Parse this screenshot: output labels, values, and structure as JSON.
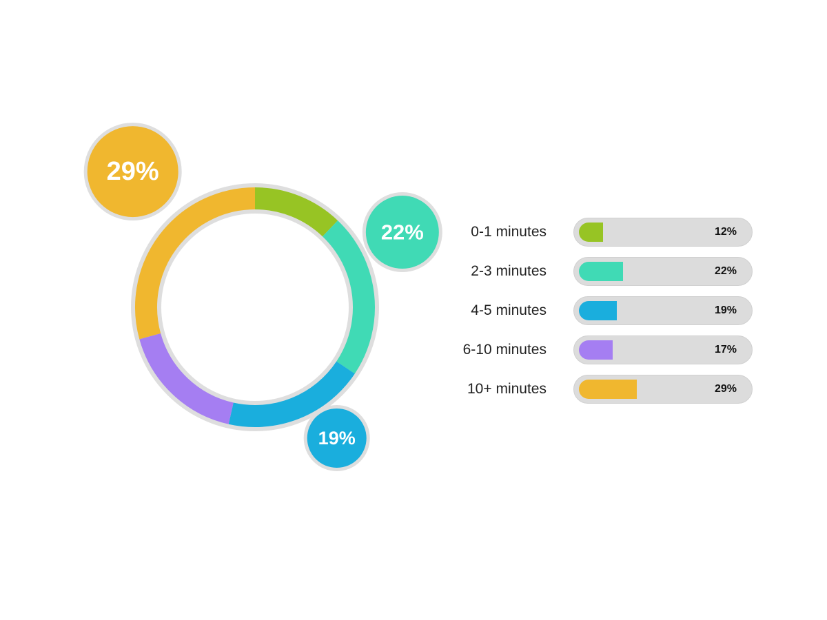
{
  "chart_data": {
    "type": "pie",
    "categories": [
      "0-1 minutes",
      "2-3 minutes",
      "4-5 minutes",
      "6-10 minutes",
      "10+ minutes"
    ],
    "values": [
      12,
      22,
      19,
      17,
      29
    ],
    "value_labels": [
      "12%",
      "22%",
      "19%",
      "17%",
      "29%"
    ],
    "colors": [
      "#97c424",
      "#40dab5",
      "#1aaedd",
      "#a57ef2",
      "#f0b72f"
    ],
    "callouts": [
      "29%",
      "22%",
      "19%"
    ],
    "legend_placement": "right"
  }
}
